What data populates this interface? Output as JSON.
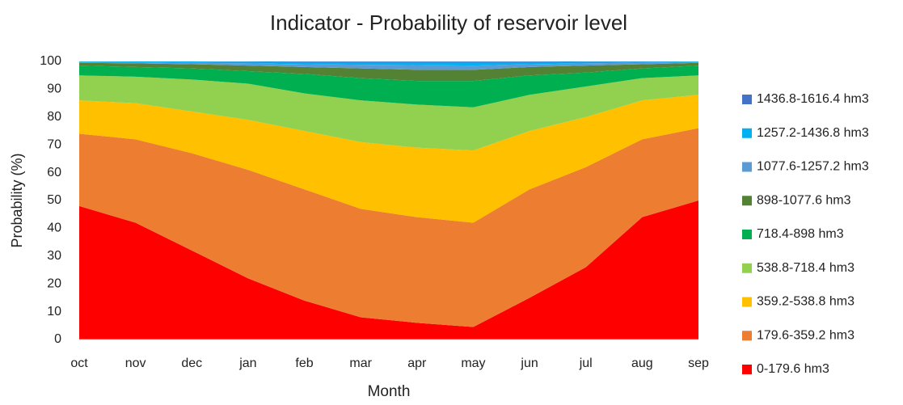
{
  "chart_data": {
    "type": "stacked_area",
    "title": "Indicator - Probability of reservoir level",
    "xlabel": "Month",
    "ylabel": "Probability (%)",
    "categories": [
      "oct",
      "nov",
      "dec",
      "jan",
      "feb",
      "mar",
      "apr",
      "may",
      "jun",
      "jul",
      "aug",
      "sep"
    ],
    "ylim": [
      0,
      100
    ],
    "yticks": [
      0,
      10,
      20,
      30,
      40,
      50,
      60,
      70,
      80,
      90,
      100
    ],
    "grid": false,
    "legend": "right",
    "series": [
      {
        "name": "0-179.6 hm3",
        "color": "#ff0000",
        "values": [
          48,
          42,
          32,
          22,
          14,
          8,
          6,
          4.5,
          15,
          26,
          44,
          50
        ]
      },
      {
        "name": "179.6-359.2 hm3",
        "color": "#ed7d31",
        "values": [
          26,
          30,
          35,
          39,
          40,
          39,
          38,
          37.5,
          39,
          36,
          28,
          26
        ]
      },
      {
        "name": "359.2-538.8 hm3",
        "color": "#ffc000",
        "values": [
          12,
          13,
          15,
          18,
          21,
          24,
          25,
          26,
          21,
          18,
          14,
          12
        ]
      },
      {
        "name": "538.8-718.4 hm3",
        "color": "#92d050",
        "values": [
          9,
          9.5,
          11.5,
          13,
          13.5,
          15,
          15.5,
          15.5,
          13,
          11,
          8,
          7
        ]
      },
      {
        "name": "718.4-898 hm3",
        "color": "#00b050",
        "values": [
          3.5,
          3.5,
          4,
          4.5,
          7,
          8,
          8.5,
          9.5,
          7,
          5,
          3.5,
          3.5
        ]
      },
      {
        "name": "898-1077.6 hm3",
        "color": "#548235",
        "values": [
          1,
          1.3,
          1.5,
          2,
          2.5,
          3.5,
          4,
          4,
          3,
          2.5,
          1.5,
          1
        ]
      },
      {
        "name": "1077.6-1257.2 hm3",
        "color": "#5b9bd5",
        "values": [
          0.3,
          0.4,
          0.5,
          0.8,
          1,
          1.3,
          1.7,
          1.5,
          1,
          0.8,
          0.6,
          0.3
        ]
      },
      {
        "name": "1257.2-1436.8 hm3",
        "color": "#00b0f0",
        "values": [
          0.2,
          0.3,
          0.5,
          0.6,
          0.8,
          1,
          1.1,
          1.3,
          0.8,
          0.6,
          0.3,
          0.2
        ]
      },
      {
        "name": "1436.8-1616.4 hm3",
        "color": "#4472c4",
        "values": [
          0,
          0,
          0,
          0.1,
          0.2,
          0.2,
          0.2,
          0.2,
          0.2,
          0.1,
          0.1,
          0
        ]
      }
    ]
  }
}
